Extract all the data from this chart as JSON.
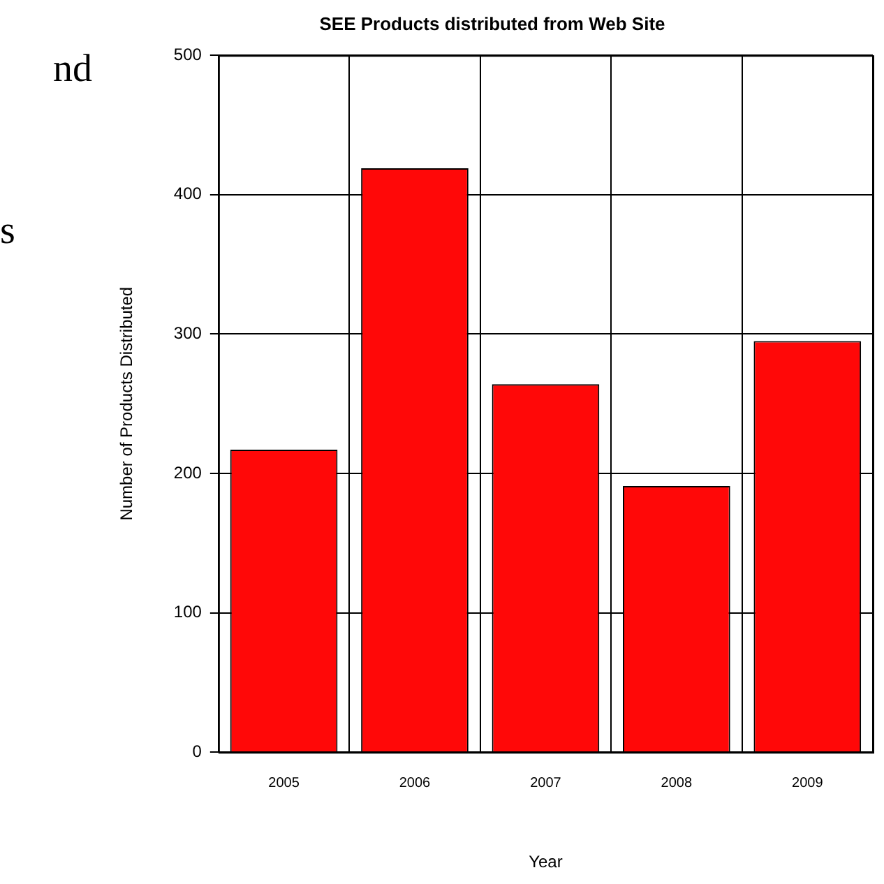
{
  "chart_data": {
    "type": "bar",
    "title": "SEE Products distributed from Web Site",
    "xlabel": "Year",
    "ylabel": "Number of Products Distributed",
    "categories": [
      "2005",
      "2006",
      "2007",
      "2008",
      "2009"
    ],
    "values": [
      217,
      419,
      264,
      191,
      295
    ],
    "color": "#ff0808",
    "ylim": [
      0,
      500
    ],
    "yticks": [
      0,
      100,
      200,
      300,
      400,
      500
    ],
    "grid": true,
    "legend": false,
    "annotations": [
      "nd",
      "s"
    ]
  }
}
